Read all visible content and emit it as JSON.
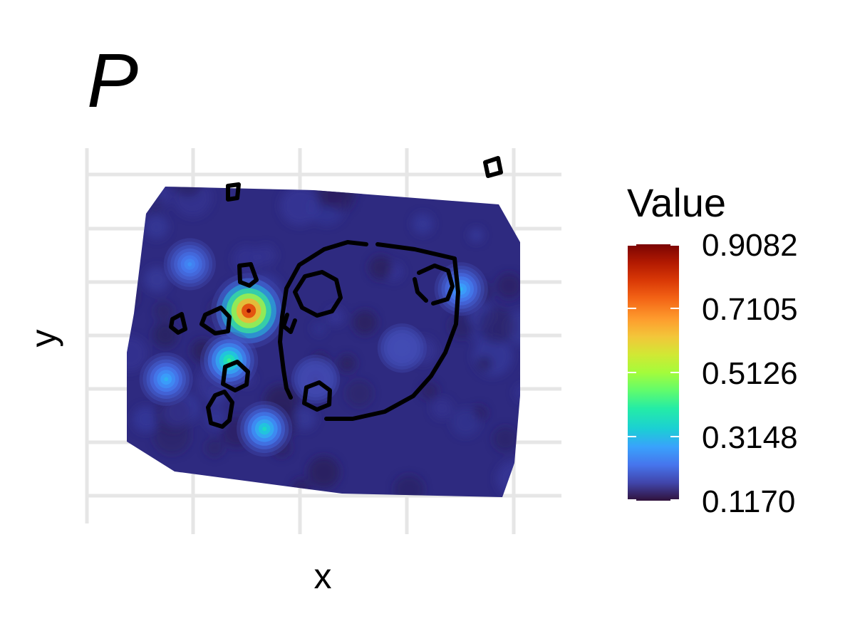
{
  "chart_data": {
    "type": "heatmap",
    "title": "P",
    "xlabel": "x",
    "ylabel": "y",
    "grid": true,
    "legend": {
      "title": "Value",
      "placement": "right",
      "colormap": "turbo",
      "range": [
        0.117,
        0.9082
      ],
      "ticks": [
        "0.9082",
        "0.7105",
        "0.5126",
        "0.3148",
        "0.1170"
      ]
    },
    "hotspots": [
      {
        "x": 0.31,
        "y": 0.4,
        "value": 0.9082
      },
      {
        "x": 0.26,
        "y": 0.56,
        "value": 0.42
      },
      {
        "x": 0.1,
        "y": 0.62,
        "value": 0.3
      },
      {
        "x": 0.35,
        "y": 0.78,
        "value": 0.36
      },
      {
        "x": 0.16,
        "y": 0.25,
        "value": 0.26
      },
      {
        "x": 0.85,
        "y": 0.33,
        "value": 0.3
      },
      {
        "x": 0.48,
        "y": 0.62,
        "value": 0.17
      },
      {
        "x": 0.7,
        "y": 0.52,
        "value": 0.18
      }
    ],
    "contour_level": 0.25
  },
  "colors": {
    "background": "#ffffff",
    "grid": "#e6e6e6",
    "contour": "#000000"
  }
}
